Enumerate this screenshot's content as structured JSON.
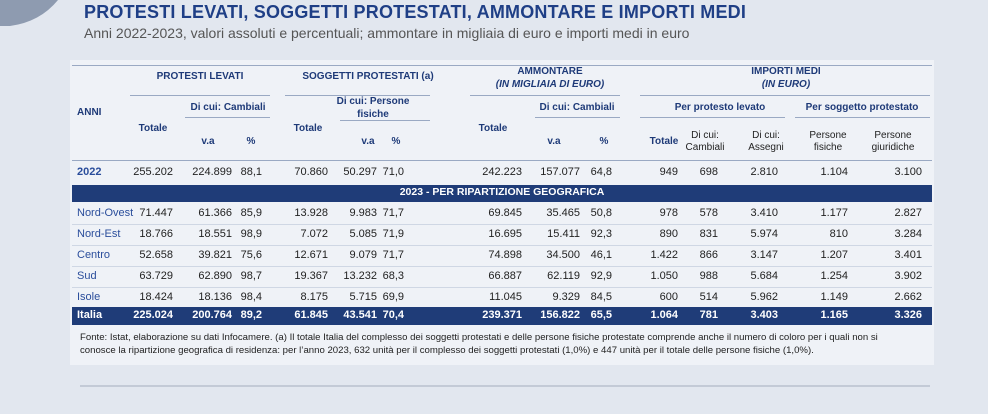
{
  "header": {
    "title": "PROTESTI LEVATI, SOGGETTI PROTESTATI, AMMONTARE E IMPORTI MEDI",
    "subtitle": "Anni 2022-2023, valori assoluti e percentuali; ammontare in migliaia di euro e importi medi in euro"
  },
  "table": {
    "stub_header": "ANNI",
    "groups": [
      {
        "title": "PROTESTI LEVATI"
      },
      {
        "title": "SOGGETTI PROTESTATI (a)"
      },
      {
        "title": "AMMONTARE",
        "subtitle": "(IN MIGLIAIA DI EURO)"
      },
      {
        "title": "IMPORTI MEDI",
        "subtitle": "(IN EURO)"
      }
    ],
    "subgroups": [
      "Di cui: Cambiali",
      "Di cui: Persone fisiche",
      "Di cui: Cambiali",
      "Per protesto levato",
      "Per soggetto protestato"
    ],
    "columns": [
      "Totale",
      "v.a",
      "%",
      "Totale",
      "v.a",
      "%",
      "Totale",
      "v.a",
      "%",
      "Totale",
      "Di cui: Cambiali",
      "Di cui: Assegni",
      "Persone fisiche",
      "Persone giuridiche"
    ],
    "rows": [
      [
        "2022",
        "255.202",
        "224.899",
        "88,1",
        "70.860",
        "50.297",
        "71,0",
        "242.223",
        "157.077",
        "64,8",
        "949",
        "698",
        "2.810",
        "1.104",
        "3.100"
      ]
    ],
    "section": "2023 - PER RIPARTIZIONE GEOGRAFICA",
    "section_rows": [
      [
        "Nord-Ovest",
        "71.447",
        "61.366",
        "85,9",
        "13.928",
        "9.983",
        "71,7",
        "69.845",
        "35.465",
        "50,8",
        "978",
        "578",
        "3.410",
        "1.177",
        "2.827"
      ],
      [
        "Nord-Est",
        "18.766",
        "18.551",
        "98,9",
        "7.072",
        "5.085",
        "71,9",
        "16.695",
        "15.411",
        "92,3",
        "890",
        "831",
        "5.974",
        "810",
        "3.284"
      ],
      [
        "Centro",
        "52.658",
        "39.821",
        "75,6",
        "12.671",
        "9.079",
        "71,7",
        "74.898",
        "34.500",
        "46,1",
        "1.422",
        "866",
        "3.147",
        "1.207",
        "3.401"
      ],
      [
        "Sud",
        "63.729",
        "62.890",
        "98,7",
        "19.367",
        "13.232",
        "68,3",
        "66.887",
        "62.119",
        "92,9",
        "1.050",
        "988",
        "5.684",
        "1.254",
        "3.902"
      ],
      [
        "Isole",
        "18.424",
        "18.136",
        "98,4",
        "8.175",
        "5.715",
        "69,9",
        "11.045",
        "9.329",
        "84,5",
        "600",
        "514",
        "5.962",
        "1.149",
        "2.662"
      ]
    ],
    "total_row": [
      "Italia",
      "225.024",
      "200.764",
      "89,2",
      "61.845",
      "43.541",
      "70,4",
      "239.371",
      "156.822",
      "65,5",
      "1.064",
      "781",
      "3.403",
      "1.165",
      "3.326"
    ]
  },
  "footnote": "Fonte: Istat, elaborazione su dati Infocamere. (a) Il totale Italia del complesso dei soggetti protestati e delle persone fisiche protestate comprende anche il numero di coloro per i quali non si conosce la ripartizione geografica di residenza: per l’anno 2023, 632 unità per il complesso dei soggetti protestati (1,0%) e 447 unità per il totale delle persone fisiche (1,0%)."
}
